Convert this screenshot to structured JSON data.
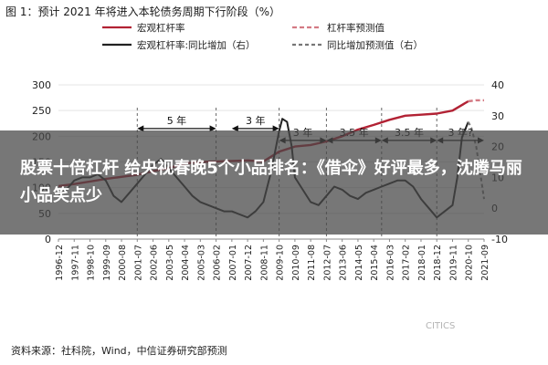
{
  "figure_title": "图 1：预计 2021 年将进入本轮债务周期下行阶段（%）",
  "banner": {
    "text": "股票十倍杠杆 给央视春晚5个小品排名：《借伞》好评最多，沈腾马丽小品笑点少"
  },
  "source_note": "资料来源：社科院，Wind，中信证券研究部预测",
  "watermark": "CITICS",
  "colors": {
    "leverage": "#b22234",
    "yoy": "#222222",
    "forecast_leverage": "#d47a84",
    "forecast_yoy": "#777777"
  },
  "chart_data": {
    "type": "line",
    "title": "",
    "xlabel": "",
    "ylabel": "",
    "ylim": [
      0,
      300
    ],
    "ylim_right": [
      -10,
      40
    ],
    "left_ticks": [
      "0",
      "50",
      "100",
      "150",
      "200",
      "250",
      "300"
    ],
    "right_ticks": [
      "-10",
      "0",
      "10",
      "20",
      "30",
      "40"
    ],
    "x_ticks": [
      "1996-12",
      "1997-11",
      "1998-10",
      "1999-09",
      "2000-08",
      "2001-07",
      "2002-06",
      "2003-05",
      "2004-04",
      "2005-03",
      "2006-02",
      "2007-01",
      "2007-12",
      "2008-11",
      "2009-10",
      "2010-09",
      "2011-08",
      "2012-07",
      "2013-06",
      "2014-05",
      "2015-04",
      "2016-03",
      "2017-02",
      "2018-01",
      "2018-12",
      "2019-11",
      "2020-10",
      "2021-09"
    ],
    "legend": [
      {
        "name": "宏观杠杆率",
        "style": "solid-red"
      },
      {
        "name": "杠杆率预测值",
        "style": "dashed-red"
      },
      {
        "name": "宏观杠杆率:同比增加（右）",
        "style": "solid-black"
      },
      {
        "name": "同比增加预测值（右）",
        "style": "dashed-grey"
      }
    ],
    "series": [
      {
        "name": "宏观杠杆率",
        "axis": "left",
        "x": [
          0,
          1,
          2,
          3,
          4,
          5,
          6,
          7,
          8,
          9,
          10,
          11,
          12,
          13,
          14,
          15,
          16,
          17,
          18,
          19,
          20,
          21,
          22,
          23,
          24,
          25,
          26
        ],
        "values": [
          103,
          107,
          112,
          117,
          121,
          125,
          132,
          138,
          147,
          150,
          151,
          152,
          153,
          151,
          170,
          180,
          183,
          190,
          200,
          213,
          222,
          232,
          240,
          242,
          244,
          250,
          268
        ]
      },
      {
        "name": "杠杆率预测值",
        "axis": "left",
        "x": [
          26,
          26.5,
          27
        ],
        "values": [
          268,
          270,
          270
        ]
      },
      {
        "name": "宏观杠杆率:同比增加（右）",
        "axis": "right",
        "x": [
          0,
          0.5,
          1,
          1.5,
          2,
          2.5,
          3,
          3.5,
          4,
          4.5,
          5,
          5.5,
          6,
          6.5,
          7,
          7.5,
          8,
          8.5,
          9,
          9.5,
          10,
          10.5,
          11,
          11.5,
          12,
          12.5,
          13,
          13.5,
          14,
          14.2,
          14.5,
          14.8,
          15,
          15.5,
          16,
          16.5,
          17,
          17.5,
          18,
          18.5,
          19,
          19.5,
          20,
          20.5,
          21,
          21.5,
          22,
          22.5,
          23,
          23.5,
          24,
          24.5,
          25,
          25.3,
          25.6,
          26
        ],
        "values": [
          4,
          6,
          9,
          10,
          10,
          11,
          9,
          4,
          2,
          5,
          8,
          11,
          14,
          16,
          13,
          10,
          7,
          4,
          2,
          1,
          0,
          -1,
          -1,
          -2,
          -3,
          -1,
          2,
          12,
          25,
          29,
          28,
          20,
          10,
          6,
          2,
          1,
          4,
          7,
          6,
          4,
          3,
          5,
          6,
          7,
          8,
          9,
          9,
          7,
          3,
          0,
          -3,
          -1,
          1,
          10,
          23,
          28
        ]
      },
      {
        "name": "同比增加预测值（右）",
        "axis": "right",
        "x": [
          26,
          26.2,
          26.5,
          26.8,
          27
        ],
        "values": [
          28,
          26,
          20,
          10,
          3
        ]
      }
    ],
    "annotations": [
      {
        "text": "5 年",
        "from": 5,
        "to": 10,
        "y": 215
      },
      {
        "text": "3 年",
        "from": 11,
        "to": 14,
        "y": 215
      },
      {
        "text": "3 年",
        "from": 14,
        "to": 17,
        "y": 22
      },
      {
        "text": "3.5 年",
        "from": 17,
        "to": 20.5,
        "y": 22
      },
      {
        "text": "3.5 年",
        "from": 20.5,
        "to": 24,
        "y": 22
      },
      {
        "text": "3 年?",
        "from": 24,
        "to": 27,
        "y": 22
      }
    ],
    "vlines": [
      5,
      10,
      14,
      17,
      20.5,
      24
    ]
  }
}
